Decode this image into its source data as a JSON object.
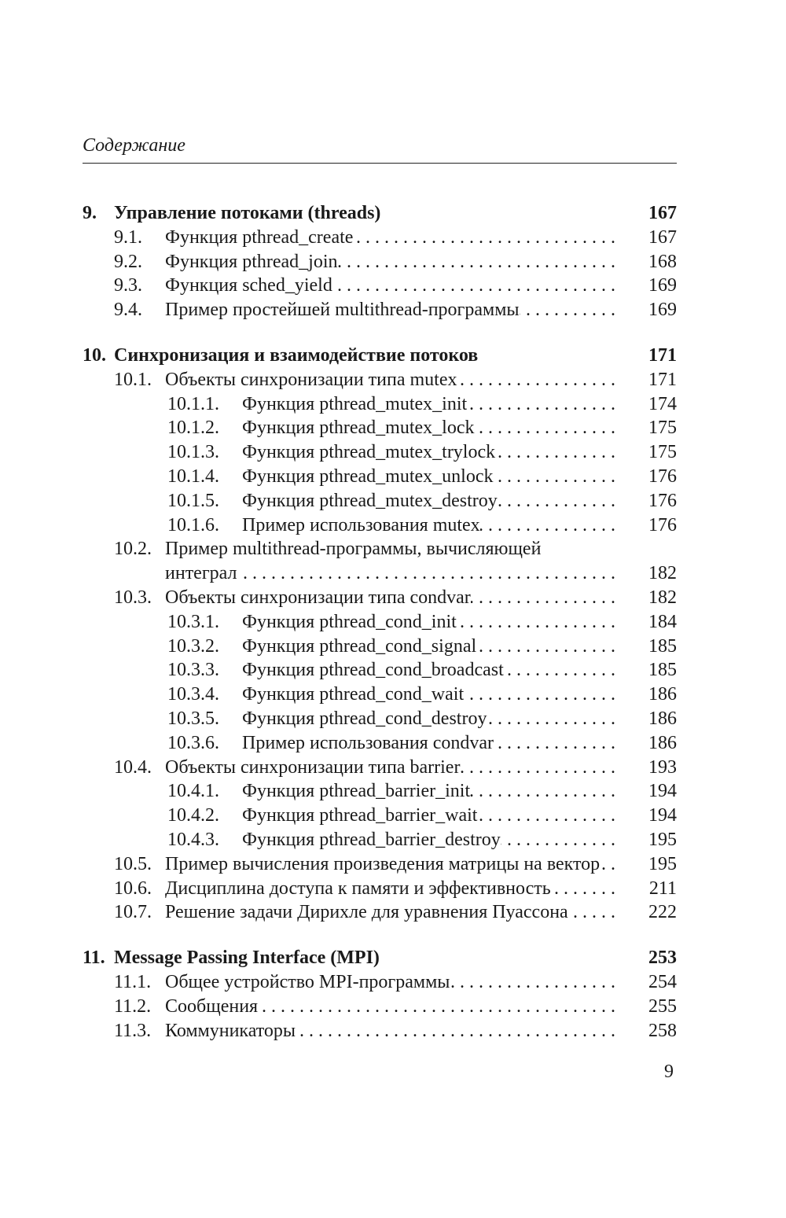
{
  "running_head": "Содержание",
  "folio": "9",
  "toc": [
    {
      "level": 1,
      "num": "9.",
      "title": "Управление потоками (threads)",
      "page": "167"
    },
    {
      "level": 2,
      "num": "9.1.",
      "title": "Функция pthread_create",
      "page": "167"
    },
    {
      "level": 2,
      "num": "9.2.",
      "title": "Функция pthread_join",
      "page": "168"
    },
    {
      "level": 2,
      "num": "9.3.",
      "title": "Функция sched_yield",
      "page": "169"
    },
    {
      "level": 2,
      "num": "9.4.",
      "title": "Пример простейшей multithread-программы",
      "page": "169"
    },
    {
      "level": 1,
      "num": "10.",
      "title": "Синхронизация и взаимодействие потоков",
      "page": "171"
    },
    {
      "level": 2,
      "num": "10.1.",
      "title": "Объекты синхронизации типа mutex",
      "page": "171"
    },
    {
      "level": 3,
      "num": "10.1.1.",
      "title": "Функция pthread_mutex_init",
      "page": "174"
    },
    {
      "level": 3,
      "num": "10.1.2.",
      "title": "Функция pthread_mutex_lock",
      "page": "175"
    },
    {
      "level": 3,
      "num": "10.1.3.",
      "title": "Функция pthread_mutex_trylock",
      "page": "175"
    },
    {
      "level": 3,
      "num": "10.1.4.",
      "title": "Функция pthread_mutex_unlock",
      "page": "176"
    },
    {
      "level": 3,
      "num": "10.1.5.",
      "title": "Функция pthread_mutex_destroy",
      "page": "176"
    },
    {
      "level": 3,
      "num": "10.1.6.",
      "title": "Пример использования mutex",
      "page": "176"
    },
    {
      "level": 2,
      "num": "10.2.",
      "title": "Пример multithread-программы, вычисляющей",
      "title_cont": "интеграл",
      "page": "182"
    },
    {
      "level": 2,
      "num": "10.3.",
      "title": "Объекты синхронизации типа condvar",
      "page": "182"
    },
    {
      "level": 3,
      "num": "10.3.1.",
      "title": "Функция pthread_cond_init",
      "page": "184"
    },
    {
      "level": 3,
      "num": "10.3.2.",
      "title": "Функция pthread_cond_signal",
      "page": "185"
    },
    {
      "level": 3,
      "num": "10.3.3.",
      "title": "Функция pthread_cond_broadcast",
      "page": "185"
    },
    {
      "level": 3,
      "num": "10.3.4.",
      "title": "Функция pthread_cond_wait",
      "page": "186"
    },
    {
      "level": 3,
      "num": "10.3.5.",
      "title": "Функция pthread_cond_destroy",
      "page": "186"
    },
    {
      "level": 3,
      "num": "10.3.6.",
      "title": "Пример использования condvar",
      "page": "186"
    },
    {
      "level": 2,
      "num": "10.4.",
      "title": "Объекты синхронизации типа barrier",
      "page": "193"
    },
    {
      "level": 3,
      "num": "10.4.1.",
      "title": "Функция pthread_barrier_init",
      "page": "194"
    },
    {
      "level": 3,
      "num": "10.4.2.",
      "title": "Функция pthread_barrier_wait",
      "page": "194"
    },
    {
      "level": 3,
      "num": "10.4.3.",
      "title": "Функция pthread_barrier_destroy",
      "page": "195"
    },
    {
      "level": 2,
      "num": "10.5.",
      "title": "Пример вычисления произведения матрицы на вектор",
      "page": "195"
    },
    {
      "level": 2,
      "num": "10.6.",
      "title": "Дисциплина доступа к памяти и эффективность",
      "page": "211"
    },
    {
      "level": 2,
      "num": "10.7.",
      "title": "Решение задачи Дирихле для уравнения Пуассона",
      "page": "222"
    },
    {
      "level": 1,
      "num": "11.",
      "title": "Message Passing Interface (MPI)",
      "page": "253"
    },
    {
      "level": 2,
      "num": "11.1.",
      "title": "Общее устройство MPI-программы",
      "page": "254"
    },
    {
      "level": 2,
      "num": "11.2.",
      "title": "Сообщения",
      "page": "255"
    },
    {
      "level": 2,
      "num": "11.3.",
      "title": "Коммуникаторы",
      "page": "258"
    }
  ]
}
